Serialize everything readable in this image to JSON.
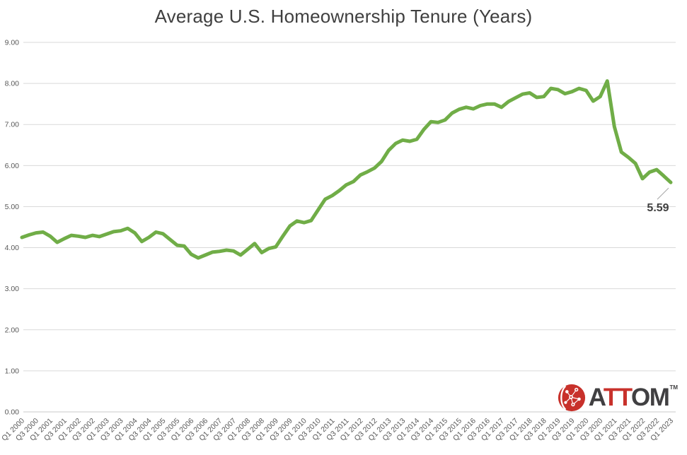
{
  "chart_data": {
    "type": "line",
    "title": "Average U.S. Homeownership Tenure (Years)",
    "series_name": "Average U.S. homeownership tenure",
    "x": [
      "Q1 2000",
      "Q2 2000",
      "Q3 2000",
      "Q4 2000",
      "Q1 2001",
      "Q2 2001",
      "Q3 2001",
      "Q4 2001",
      "Q1 2002",
      "Q2 2002",
      "Q3 2002",
      "Q4 2002",
      "Q1 2003",
      "Q2 2003",
      "Q3 2003",
      "Q4 2003",
      "Q1 2004",
      "Q2 2004",
      "Q3 2004",
      "Q4 2004",
      "Q1 2005",
      "Q2 2005",
      "Q3 2005",
      "Q4 2005",
      "Q1 2006",
      "Q2 2006",
      "Q3 2006",
      "Q4 2006",
      "Q1 2007",
      "Q2 2007",
      "Q3 2007",
      "Q4 2007",
      "Q1 2008",
      "Q2 2008",
      "Q3 2008",
      "Q4 2008",
      "Q1 2009",
      "Q2 2009",
      "Q3 2009",
      "Q4 2009",
      "Q1 2010",
      "Q2 2010",
      "Q3 2010",
      "Q4 2010",
      "Q1 2011",
      "Q2 2011",
      "Q3 2011",
      "Q4 2011",
      "Q1 2012",
      "Q2 2012",
      "Q3 2012",
      "Q4 2012",
      "Q1 2013",
      "Q2 2013",
      "Q3 2013",
      "Q4 2013",
      "Q1 2014",
      "Q2 2014",
      "Q3 2014",
      "Q4 2014",
      "Q1 2015",
      "Q2 2015",
      "Q3 2015",
      "Q4 2015",
      "Q1 2016",
      "Q2 2016",
      "Q3 2016",
      "Q4 2016",
      "Q1 2017",
      "Q2 2017",
      "Q3 2017",
      "Q4 2017",
      "Q1 2018",
      "Q2 2018",
      "Q3 2018",
      "Q4 2018",
      "Q1 2019",
      "Q2 2019",
      "Q3 2019",
      "Q4 2019",
      "Q1 2020",
      "Q2 2020",
      "Q3 2020",
      "Q4 2020",
      "Q1 2021",
      "Q2 2021",
      "Q3 2021",
      "Q4 2021",
      "Q1 2022",
      "Q2 2022",
      "Q3 2022",
      "Q4 2022",
      "Q1 2023"
    ],
    "values": [
      4.25,
      4.31,
      4.36,
      4.38,
      4.28,
      4.13,
      4.22,
      4.3,
      4.28,
      4.25,
      4.3,
      4.27,
      4.33,
      4.39,
      4.41,
      4.47,
      4.36,
      4.15,
      4.25,
      4.38,
      4.34,
      4.2,
      4.06,
      4.04,
      3.84,
      3.75,
      3.82,
      3.89,
      3.91,
      3.94,
      3.92,
      3.82,
      3.96,
      4.1,
      3.88,
      3.98,
      4.02,
      4.28,
      4.53,
      4.65,
      4.61,
      4.66,
      4.92,
      5.18,
      5.27,
      5.39,
      5.53,
      5.61,
      5.77,
      5.85,
      5.94,
      6.1,
      6.37,
      6.54,
      6.62,
      6.59,
      6.64,
      6.88,
      7.07,
      7.05,
      7.11,
      7.28,
      7.37,
      7.42,
      7.38,
      7.46,
      7.5,
      7.5,
      7.42,
      7.56,
      7.65,
      7.74,
      7.77,
      7.66,
      7.68,
      7.88,
      7.85,
      7.75,
      7.8,
      7.88,
      7.83,
      7.57,
      7.68,
      8.06,
      6.95,
      6.33,
      6.2,
      6.05,
      5.68,
      5.84,
      5.9,
      5.75,
      5.59
    ],
    "ylim": [
      0,
      9
    ],
    "yticks": [
      "0.00",
      "1.00",
      "2.00",
      "3.00",
      "4.00",
      "5.00",
      "6.00",
      "7.00",
      "8.00",
      "9.00"
    ],
    "xtick_every": 2,
    "grid": true,
    "legend": "none",
    "annotation": {
      "text": "5.59",
      "at": "Q1 2023"
    }
  },
  "colors": {
    "line": "#70AD47",
    "grid": "#D9D9D9",
    "axis_line": "#C9C9C9",
    "axis_label": "#595959",
    "title": "#3F3F3F",
    "annotation_text": "#3F3F3F",
    "leader_line": "#A6A6A6",
    "logo_red": "#C8312B",
    "logo_dark": "#414042"
  },
  "logo": {
    "name": "ATTOM",
    "part_a": "A",
    "part_tt": "TT",
    "part_om": "OM",
    "trademark": "TM"
  }
}
